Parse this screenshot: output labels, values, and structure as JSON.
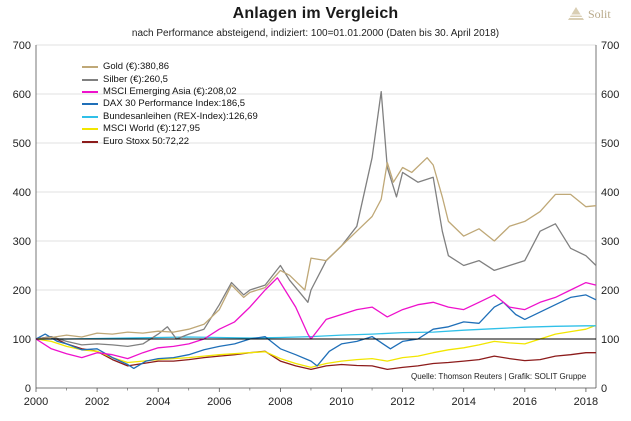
{
  "header": {
    "title": "Anlagen im Vergleich",
    "subtitle": "nach Performance absteigend, indiziert: 100=01.01.2000 (Daten bis 30. April 2018)",
    "brand": "Solit",
    "source": "Quelle: Thomson Reuters | Grafik: SOLIT Gruppe"
  },
  "colors": {
    "gold": "#bfa877",
    "silber": "#808080",
    "msci_em_asia": "#ee11cc",
    "dax": "#1f6fb8",
    "rex": "#30c0e8",
    "msci_world": "#f2e600",
    "euro_stoxx": "#8c1b1b",
    "grid": "#d9d9d9",
    "baseline": "#000000"
  },
  "chart_data": {
    "type": "line",
    "title": "Anlagen im Vergleich",
    "subtitle": "nach Performance absteigend, indiziert: 100=01.01.2000 (Daten bis 30. April 2018)",
    "xlabel": "",
    "ylabel": "",
    "xlim": [
      2000,
      2018.33
    ],
    "ylim": [
      0,
      700
    ],
    "x_ticks": [
      2000,
      2002,
      2004,
      2006,
      2008,
      2010,
      2012,
      2014,
      2016,
      2018
    ],
    "x_tick_labels": [
      "2000",
      "2002",
      "2004",
      "2006",
      "2008",
      "2010",
      "2012",
      "2014",
      "2016",
      "2018"
    ],
    "y_ticks": [
      0,
      100,
      200,
      300,
      400,
      500,
      600,
      700
    ],
    "y_tick_labels": [
      "0",
      "100",
      "200",
      "300",
      "400",
      "500",
      "600",
      "700"
    ],
    "y_axes": "left and right",
    "grid": "horizontal",
    "reference_line": 100,
    "legend_position": "top-left",
    "series": [
      {
        "key": "gold",
        "name": "Gold (€):380,86",
        "x": [
          2000,
          2000.5,
          2001,
          2001.5,
          2002,
          2002.5,
          2003,
          2003.5,
          2004,
          2004.5,
          2005,
          2005.5,
          2006,
          2006.4,
          2006.8,
          2007,
          2007.5,
          2008,
          2008.3,
          2008.8,
          2009,
          2009.5,
          2010,
          2010.5,
          2011,
          2011.3,
          2011.5,
          2011.7,
          2012,
          2012.3,
          2012.8,
          2013,
          2013.3,
          2013.5,
          2014,
          2014.5,
          2015,
          2015.5,
          2016,
          2016.5,
          2017,
          2017.5,
          2018,
          2018.33
        ],
        "y": [
          100,
          103,
          108,
          104,
          112,
          110,
          114,
          112,
          116,
          114,
          120,
          130,
          160,
          210,
          185,
          195,
          205,
          240,
          230,
          200,
          265,
          260,
          290,
          320,
          350,
          385,
          460,
          420,
          450,
          440,
          470,
          455,
          390,
          340,
          310,
          325,
          300,
          330,
          340,
          360,
          395,
          395,
          370,
          372
        ]
      },
      {
        "key": "silber",
        "name": "Silber (€):260,5",
        "x": [
          2000,
          2000.5,
          2001,
          2001.5,
          2002,
          2002.5,
          2003,
          2003.5,
          2004,
          2004.3,
          2004.6,
          2005,
          2005.5,
          2006,
          2006.4,
          2006.8,
          2007,
          2007.5,
          2008,
          2008.3,
          2008.9,
          2009,
          2009.5,
          2010,
          2010.5,
          2011,
          2011.3,
          2011.5,
          2011.8,
          2012,
          2012.5,
          2013,
          2013.3,
          2013.5,
          2014,
          2014.5,
          2015,
          2015.5,
          2016,
          2016.5,
          2017,
          2017.5,
          2018,
          2018.33
        ],
        "y": [
          100,
          105,
          95,
          88,
          90,
          88,
          85,
          90,
          110,
          125,
          100,
          110,
          120,
          170,
          215,
          190,
          200,
          210,
          250,
          220,
          175,
          200,
          260,
          290,
          330,
          470,
          605,
          450,
          390,
          440,
          420,
          430,
          320,
          270,
          250,
          260,
          240,
          250,
          260,
          320,
          335,
          285,
          270,
          250
        ]
      },
      {
        "key": "msci_em_asia",
        "name": "MSCI Emerging Asia (€):208,02",
        "x": [
          2000,
          2000.5,
          2001,
          2001.5,
          2002,
          2002.5,
          2003,
          2003.5,
          2004,
          2004.5,
          2005,
          2005.5,
          2006,
          2006.5,
          2007,
          2007.5,
          2007.9,
          2008.5,
          2008.9,
          2009,
          2009.5,
          2010,
          2010.5,
          2011,
          2011.5,
          2012,
          2012.5,
          2013,
          2013.5,
          2014,
          2014.5,
          2015,
          2015.5,
          2016,
          2016.5,
          2017,
          2017.5,
          2018,
          2018.33
        ],
        "y": [
          100,
          80,
          70,
          62,
          72,
          68,
          60,
          72,
          82,
          85,
          90,
          100,
          120,
          135,
          165,
          200,
          225,
          165,
          110,
          100,
          140,
          150,
          160,
          165,
          145,
          160,
          170,
          175,
          165,
          160,
          175,
          190,
          165,
          160,
          175,
          185,
          200,
          215,
          210
        ]
      },
      {
        "key": "dax",
        "name": "DAX 30 Performance Index:186,5",
        "x": [
          2000,
          2000.3,
          2000.7,
          2001,
          2001.5,
          2002,
          2002.5,
          2003,
          2003.2,
          2003.6,
          2004,
          2004.5,
          2005,
          2005.5,
          2006,
          2006.5,
          2007,
          2007.5,
          2008,
          2008.5,
          2009,
          2009.2,
          2009.6,
          2010,
          2010.5,
          2011,
          2011.6,
          2012,
          2012.5,
          2013,
          2013.5,
          2014,
          2014.5,
          2015,
          2015.3,
          2015.7,
          2016,
          2016.5,
          2017,
          2017.5,
          2018,
          2018.33
        ],
        "y": [
          100,
          110,
          95,
          90,
          78,
          80,
          62,
          48,
          40,
          55,
          60,
          62,
          68,
          78,
          85,
          90,
          100,
          105,
          80,
          68,
          55,
          45,
          75,
          90,
          95,
          105,
          80,
          95,
          100,
          120,
          125,
          135,
          132,
          165,
          175,
          150,
          140,
          155,
          170,
          185,
          190,
          180
        ]
      },
      {
        "key": "rex",
        "name": "Bundesanleihen (REX-Index):126,69",
        "x": [
          2000,
          2001,
          2002,
          2003,
          2004,
          2005,
          2006,
          2007,
          2008,
          2009,
          2010,
          2011,
          2012,
          2013,
          2014,
          2015,
          2016,
          2017,
          2018,
          2018.33
        ],
        "y": [
          100,
          100,
          101,
          102,
          103,
          104,
          103,
          102,
          103,
          105,
          108,
          110,
          113,
          114,
          118,
          121,
          124,
          126,
          127,
          127
        ]
      },
      {
        "key": "msci_world",
        "name": "MSCI World (€):127,95",
        "x": [
          2000,
          2000.5,
          2001,
          2001.5,
          2002,
          2002.5,
          2003,
          2003.5,
          2004,
          2004.5,
          2005,
          2005.5,
          2006,
          2006.5,
          2007,
          2007.5,
          2008,
          2008.5,
          2009,
          2009.5,
          2010,
          2010.5,
          2011,
          2011.5,
          2012,
          2012.5,
          2013,
          2013.5,
          2014,
          2014.5,
          2015,
          2015.5,
          2016,
          2016.5,
          2017,
          2017.5,
          2018,
          2018.33
        ],
        "y": [
          100,
          95,
          85,
          78,
          75,
          62,
          52,
          55,
          58,
          60,
          62,
          65,
          68,
          70,
          72,
          74,
          60,
          50,
          42,
          50,
          55,
          58,
          60,
          55,
          62,
          65,
          72,
          78,
          82,
          88,
          95,
          92,
          90,
          100,
          110,
          115,
          120,
          128
        ]
      },
      {
        "key": "euro_stoxx",
        "name": "Euro Stoxx 50:72,22",
        "x": [
          2000,
          2000.5,
          2001,
          2001.5,
          2002,
          2002.5,
          2003,
          2003.5,
          2004,
          2004.5,
          2005,
          2005.5,
          2006,
          2006.5,
          2007,
          2007.5,
          2008,
          2008.5,
          2009,
          2009.5,
          2010,
          2010.5,
          2011,
          2011.5,
          2012,
          2012.5,
          2013,
          2013.5,
          2014,
          2014.5,
          2015,
          2015.5,
          2016,
          2016.5,
          2017,
          2017.5,
          2018,
          2018.33
        ],
        "y": [
          100,
          105,
          90,
          80,
          75,
          58,
          45,
          50,
          55,
          55,
          58,
          62,
          65,
          68,
          72,
          75,
          55,
          45,
          38,
          45,
          48,
          46,
          45,
          38,
          42,
          45,
          50,
          52,
          55,
          58,
          65,
          60,
          56,
          58,
          65,
          68,
          72,
          72
        ]
      }
    ]
  }
}
